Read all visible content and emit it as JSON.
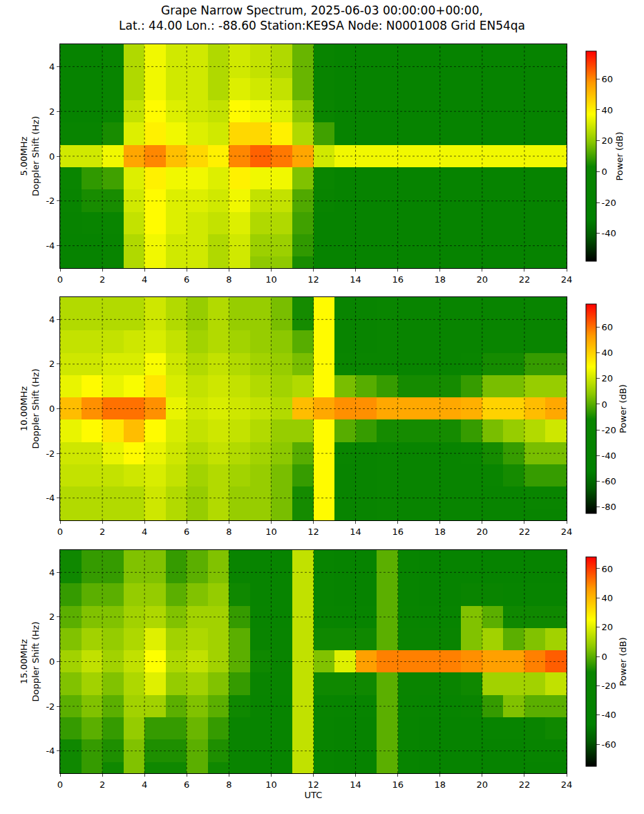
{
  "title": "Grape Narrow Spectrum, 2025-06-03 00:00:00+00:00,\nLat.: 44.00 Lon.: -88.60 Station:KE9SA Node: N0001008 Grid EN54qa",
  "chart_data": [
    {
      "type": "heatmap",
      "ylabel": "5.00MHz\nDoppler Shift (Hz)",
      "grid": true,
      "x": [
        0.5,
        1.5,
        2.5,
        3.5,
        4.5,
        5.5,
        6.5,
        7.5,
        8.5,
        9.5,
        10.5,
        11.5,
        12.5,
        13.5,
        14.5,
        15.5,
        16.5,
        17.5,
        18.5,
        19.5,
        20.5,
        21.5,
        22.5,
        23.5
      ],
      "y": [
        -5,
        -4,
        -3,
        -2,
        -1,
        0,
        1,
        2,
        3,
        4,
        5
      ],
      "z": [
        [
          -10,
          -10,
          -5,
          25,
          35,
          30,
          30,
          25,
          30,
          20,
          20,
          5,
          -10,
          -10,
          -10,
          -10,
          -10,
          -10,
          -10,
          -10,
          -10,
          -10,
          -10,
          -10
        ],
        [
          -10,
          -10,
          -5,
          25,
          35,
          30,
          30,
          25,
          30,
          22,
          22,
          8,
          -10,
          -10,
          -10,
          -10,
          -10,
          -10,
          -10,
          -10,
          -10,
          -10,
          -10,
          -10
        ],
        [
          -8,
          -5,
          0,
          28,
          38,
          32,
          30,
          28,
          32,
          25,
          25,
          10,
          -10,
          -10,
          -10,
          -10,
          -10,
          -10,
          -10,
          -10,
          -10,
          -10,
          -10,
          -10
        ],
        [
          -5,
          5,
          5,
          30,
          38,
          32,
          32,
          30,
          35,
          28,
          28,
          12,
          -5,
          -10,
          -10,
          -10,
          -10,
          -10,
          -10,
          -10,
          -10,
          -10,
          -10,
          -10
        ],
        [
          0,
          8,
          10,
          32,
          40,
          35,
          35,
          32,
          40,
          35,
          35,
          18,
          0,
          -10,
          -10,
          -10,
          -10,
          -10,
          -10,
          -10,
          -10,
          -10,
          -10,
          -10
        ],
        [
          30,
          30,
          35,
          55,
          60,
          50,
          45,
          40,
          60,
          65,
          62,
          55,
          30,
          35,
          35,
          35,
          35,
          35,
          35,
          35,
          35,
          35,
          35,
          35
        ],
        [
          -5,
          -5,
          5,
          32,
          40,
          35,
          32,
          30,
          45,
          45,
          40,
          25,
          10,
          -10,
          -10,
          -10,
          -10,
          -10,
          -10,
          -10,
          -10,
          -10,
          -10,
          -10
        ],
        [
          -10,
          -10,
          0,
          28,
          38,
          32,
          30,
          28,
          38,
          35,
          32,
          20,
          0,
          -10,
          -10,
          -10,
          -10,
          -10,
          -10,
          -10,
          -10,
          -10,
          -10,
          -10
        ],
        [
          -10,
          -10,
          -5,
          25,
          35,
          30,
          30,
          25,
          32,
          30,
          28,
          15,
          -5,
          -10,
          -10,
          -10,
          -10,
          -10,
          -10,
          -10,
          -10,
          -10,
          -10,
          -10
        ],
        [
          -10,
          -10,
          -5,
          25,
          35,
          30,
          30,
          25,
          30,
          28,
          25,
          15,
          -5,
          -10,
          -10,
          -10,
          -10,
          -10,
          -10,
          -10,
          -10,
          -10,
          -10,
          -10
        ],
        [
          -10,
          -10,
          -5,
          25,
          35,
          30,
          30,
          25,
          30,
          28,
          25,
          15,
          -5,
          -10,
          -10,
          -10,
          -10,
          -10,
          -10,
          -10,
          -10,
          -10,
          -10,
          -10
        ]
      ],
      "xlim": [
        0,
        24
      ],
      "xticks": [
        0,
        2,
        4,
        6,
        8,
        10,
        12,
        14,
        16,
        18,
        20,
        22,
        24
      ],
      "ylim": [
        -5,
        5
      ],
      "yticks": [
        -4,
        -2,
        0,
        2,
        4
      ],
      "colorbar": {
        "title": "Power (dB)",
        "range": [
          -58,
          78
        ],
        "ticks": [
          -40,
          -20,
          0,
          20,
          40,
          60
        ]
      }
    },
    {
      "type": "heatmap",
      "ylabel": "10.00MHz\nDoppler Shift (Hz)",
      "grid": true,
      "x": [
        0.5,
        1.5,
        2.5,
        3.5,
        4.5,
        5.5,
        6.5,
        7.5,
        8.5,
        9.5,
        10.5,
        11.5,
        12.5,
        13.5,
        14.5,
        15.5,
        16.5,
        17.5,
        18.5,
        19.5,
        20.5,
        21.5,
        22.5,
        23.5
      ],
      "y": [
        -5,
        -4,
        -3,
        -2,
        -1,
        0,
        1,
        2,
        3,
        4,
        5
      ],
      "z": [
        [
          15,
          15,
          15,
          15,
          20,
          15,
          10,
          15,
          10,
          10,
          5,
          -10,
          30,
          -20,
          -20,
          -15,
          -20,
          -20,
          -20,
          -20,
          -20,
          -20,
          -20,
          -20
        ],
        [
          15,
          15,
          15,
          15,
          20,
          15,
          10,
          15,
          10,
          10,
          5,
          -10,
          30,
          -20,
          -20,
          -15,
          -20,
          -20,
          -20,
          -20,
          -20,
          -20,
          -15,
          -15
        ],
        [
          18,
          18,
          18,
          20,
          22,
          18,
          12,
          15,
          12,
          10,
          5,
          -5,
          30,
          -20,
          -20,
          -15,
          -20,
          -20,
          -20,
          -20,
          -15,
          -10,
          -5,
          -5
        ],
        [
          20,
          20,
          25,
          30,
          25,
          20,
          15,
          18,
          15,
          12,
          8,
          0,
          30,
          -15,
          -18,
          -15,
          -18,
          -18,
          -18,
          -15,
          -10,
          -5,
          5,
          5
        ],
        [
          25,
          30,
          35,
          45,
          30,
          22,
          18,
          20,
          18,
          15,
          10,
          10,
          30,
          0,
          -5,
          -10,
          -10,
          -10,
          -10,
          -5,
          5,
          10,
          15,
          20
        ],
        [
          45,
          55,
          60,
          60,
          55,
          25,
          20,
          22,
          20,
          18,
          15,
          45,
          50,
          55,
          55,
          50,
          50,
          50,
          50,
          48,
          40,
          40,
          45,
          50
        ],
        [
          25,
          30,
          25,
          28,
          35,
          22,
          18,
          20,
          18,
          15,
          12,
          15,
          30,
          5,
          0,
          -5,
          -10,
          -10,
          -10,
          -5,
          5,
          5,
          10,
          10
        ],
        [
          20,
          20,
          22,
          22,
          28,
          20,
          15,
          18,
          15,
          12,
          10,
          5,
          30,
          -15,
          -15,
          -15,
          -18,
          -18,
          -18,
          -15,
          -10,
          -10,
          -5,
          -5
        ],
        [
          18,
          18,
          18,
          20,
          22,
          18,
          12,
          15,
          12,
          10,
          8,
          0,
          30,
          -20,
          -18,
          -15,
          -20,
          -20,
          -20,
          -20,
          -15,
          -15,
          -15,
          -15
        ],
        [
          15,
          15,
          15,
          15,
          20,
          15,
          10,
          15,
          10,
          10,
          5,
          -10,
          30,
          -20,
          -20,
          -15,
          -20,
          -20,
          -20,
          -20,
          -20,
          -20,
          -20,
          -20
        ],
        [
          15,
          15,
          15,
          15,
          20,
          15,
          10,
          15,
          10,
          10,
          5,
          -10,
          30,
          -20,
          -20,
          -15,
          -20,
          -20,
          -20,
          -20,
          -20,
          -20,
          -20,
          -20
        ]
      ],
      "xlim": [
        0,
        24
      ],
      "xticks": [
        0,
        2,
        4,
        6,
        8,
        10,
        12,
        14,
        16,
        18,
        20,
        22,
        24
      ],
      "ylim": [
        -5,
        5
      ],
      "yticks": [
        -4,
        -2,
        0,
        2,
        4
      ],
      "colorbar": {
        "title": "Power (dB)",
        "range": [
          -85,
          78
        ],
        "ticks": [
          -80,
          -60,
          -40,
          -20,
          0,
          20,
          40,
          60
        ]
      }
    },
    {
      "type": "heatmap",
      "ylabel": "15.00MHz\nDoppler Shift (Hz)",
      "xlabel": "UTC",
      "grid": true,
      "x": [
        0.5,
        1.5,
        2.5,
        3.5,
        4.5,
        5.5,
        6.5,
        7.5,
        8.5,
        9.5,
        10.5,
        11.5,
        12.5,
        13.5,
        14.5,
        15.5,
        16.5,
        17.5,
        18.5,
        19.5,
        20.5,
        21.5,
        22.5,
        23.5
      ],
      "y": [
        -5,
        -4,
        -3,
        -2,
        -1,
        0,
        1,
        2,
        3,
        4,
        5
      ],
      "z": [
        [
          -10,
          -5,
          -10,
          5,
          -10,
          -10,
          0,
          -10,
          -15,
          -20,
          -20,
          15,
          -20,
          -25,
          -25,
          0,
          -20,
          -25,
          -25,
          -25,
          -25,
          -25,
          -25,
          -25
        ],
        [
          -10,
          -5,
          -8,
          5,
          -8,
          -8,
          0,
          -8,
          -15,
          -20,
          -20,
          15,
          -20,
          -25,
          -25,
          0,
          -20,
          -25,
          -25,
          -25,
          -25,
          -25,
          -20,
          -20
        ],
        [
          -5,
          0,
          -5,
          8,
          -5,
          -5,
          2,
          -5,
          -15,
          -20,
          -20,
          15,
          -20,
          -25,
          -25,
          0,
          -20,
          -25,
          -25,
          -25,
          -20,
          -20,
          -15,
          -10
        ],
        [
          0,
          5,
          0,
          10,
          10,
          0,
          5,
          0,
          -10,
          -18,
          -20,
          15,
          -18,
          -20,
          -20,
          0,
          -18,
          -20,
          -20,
          -15,
          -5,
          5,
          0,
          0
        ],
        [
          5,
          10,
          5,
          12,
          20,
          8,
          10,
          5,
          -5,
          -15,
          -18,
          15,
          -10,
          -10,
          -10,
          0,
          -15,
          -15,
          -15,
          -10,
          10,
          10,
          10,
          15
        ],
        [
          10,
          15,
          10,
          15,
          25,
          12,
          15,
          10,
          0,
          -10,
          -15,
          15,
          5,
          20,
          45,
          50,
          50,
          50,
          50,
          48,
          45,
          45,
          50,
          55
        ],
        [
          5,
          10,
          8,
          12,
          20,
          10,
          12,
          10,
          0,
          -15,
          -18,
          15,
          -10,
          -10,
          -10,
          0,
          -15,
          -15,
          -15,
          5,
          10,
          0,
          5,
          10
        ],
        [
          0,
          5,
          5,
          10,
          12,
          5,
          10,
          10,
          -5,
          -18,
          -20,
          15,
          -18,
          -20,
          -20,
          0,
          -18,
          -20,
          -20,
          5,
          0,
          -10,
          -10,
          -10
        ],
        [
          -5,
          0,
          0,
          8,
          8,
          0,
          5,
          8,
          -10,
          -20,
          -20,
          15,
          -20,
          -25,
          -25,
          0,
          -20,
          -25,
          -25,
          -15,
          -15,
          -20,
          -20,
          -20
        ],
        [
          -10,
          -5,
          -5,
          5,
          5,
          -5,
          0,
          5,
          -15,
          -20,
          -20,
          15,
          -20,
          -25,
          -25,
          0,
          -20,
          -25,
          -25,
          -25,
          -25,
          -25,
          -25,
          -25
        ],
        [
          -10,
          -5,
          -5,
          5,
          5,
          -5,
          0,
          5,
          -15,
          -20,
          -20,
          15,
          -20,
          -25,
          -25,
          0,
          -20,
          -25,
          -25,
          -25,
          -25,
          -25,
          -25,
          -25
        ]
      ],
      "xlim": [
        0,
        24
      ],
      "xticks": [
        0,
        2,
        4,
        6,
        8,
        10,
        12,
        14,
        16,
        18,
        20,
        22,
        24
      ],
      "ylim": [
        -5,
        5
      ],
      "yticks": [
        -4,
        -2,
        0,
        2,
        4
      ],
      "colorbar": {
        "title": "Power (dB)",
        "range": [
          -75,
          68
        ],
        "ticks": [
          -60,
          -40,
          -20,
          0,
          20,
          40,
          60
        ]
      }
    }
  ]
}
